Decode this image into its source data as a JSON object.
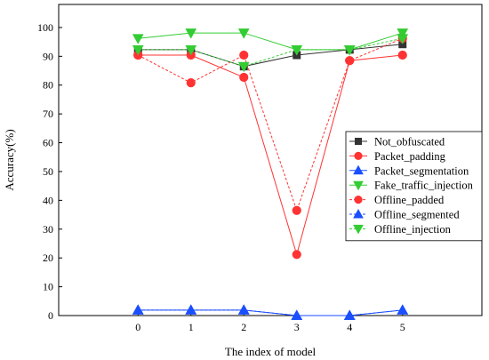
{
  "chart_data": {
    "type": "line",
    "xlabel": "The index of model",
    "ylabel": "Accuracy(%)",
    "x": [
      0,
      1,
      2,
      3,
      4,
      5
    ],
    "xlim": [
      -1.5,
      6.5
    ],
    "ylim": [
      0,
      108
    ],
    "x_ticks": [
      0,
      1,
      2,
      3,
      4,
      5
    ],
    "y_ticks": [
      0,
      10,
      20,
      30,
      40,
      50,
      60,
      70,
      80,
      90,
      100
    ],
    "grid": false,
    "legend_position": "right",
    "series": [
      {
        "name": "Not_obfuscated",
        "values": [
          92.3,
          92.3,
          86.5,
          90.4,
          92.3,
          94.2
        ],
        "color": "#333333",
        "marker": "square",
        "line_style": "solid"
      },
      {
        "name": "Packet_padding",
        "values": [
          90.4,
          90.4,
          82.7,
          21.2,
          88.5,
          90.4
        ],
        "color": "#ff3333",
        "marker": "circle",
        "line_style": "solid"
      },
      {
        "name": "Packet_segmentation",
        "values": [
          1.9,
          1.9,
          1.9,
          0.0,
          0.0,
          1.9
        ],
        "color": "#1a4fff",
        "marker": "triangle-up",
        "line_style": "solid"
      },
      {
        "name": "Fake_traffic_injection",
        "values": [
          96.2,
          98.1,
          98.1,
          92.3,
          92.3,
          98.1
        ],
        "color": "#33cc33",
        "marker": "triangle-down",
        "line_style": "solid"
      },
      {
        "name": "Offline_padded",
        "values": [
          90.4,
          80.8,
          90.4,
          36.5,
          88.5,
          96.2
        ],
        "color": "#ff3333",
        "marker": "circle",
        "line_style": "dashed"
      },
      {
        "name": "Offline_segmented",
        "values": [
          1.9,
          1.9,
          1.9,
          0.0,
          0.0,
          1.9
        ],
        "color": "#1a4fff",
        "marker": "triangle-up",
        "line_style": "dashed"
      },
      {
        "name": "Offline_injection",
        "values": [
          92.3,
          92.3,
          86.5,
          92.3,
          92.3,
          96.2
        ],
        "color": "#33cc33",
        "marker": "triangle-down",
        "line_style": "dashed"
      }
    ]
  }
}
